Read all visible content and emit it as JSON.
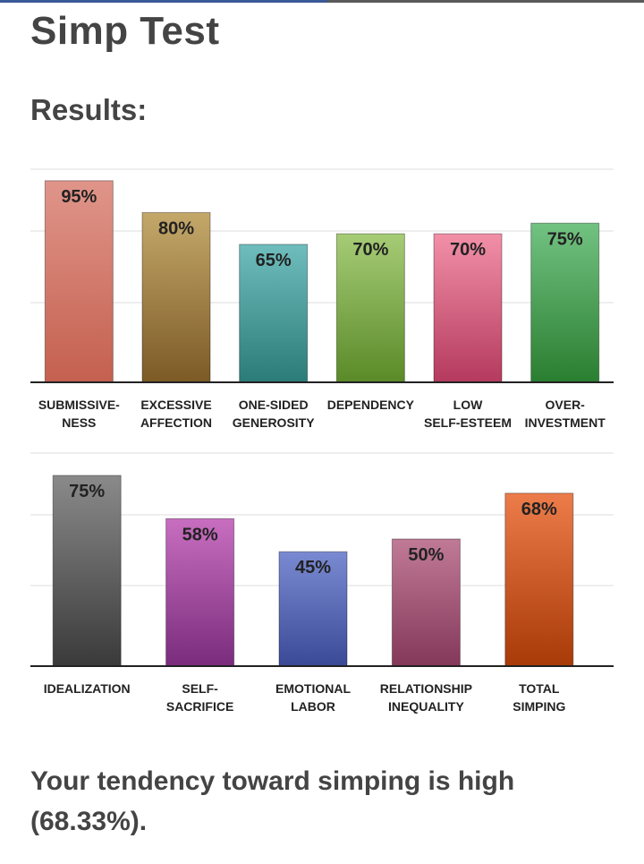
{
  "page": {
    "title": "Simp Test",
    "subtitle": "Results:",
    "result_line1": "Your tendency toward simping is high",
    "result_line2": "(68.33%)."
  },
  "chart_data": [
    {
      "type": "bar",
      "ylim": [
        0,
        100
      ],
      "grid": true,
      "categories": [
        [
          "SUBMISSIVE-",
          "NESS"
        ],
        [
          "EXCESSIVE",
          "AFFECTION"
        ],
        [
          "ONE-SIDED",
          "GENEROSITY"
        ],
        [
          "DEPENDENCY"
        ],
        [
          "LOW",
          "SELF-ESTEEM"
        ],
        [
          "OVER-",
          "INVESTMENT"
        ]
      ],
      "values": [
        95,
        80,
        65,
        70,
        70,
        75
      ],
      "labels": [
        "95%",
        "80%",
        "65%",
        "70%",
        "70%",
        "75%"
      ],
      "colors": [
        [
          "#e0958a",
          "#c4604f"
        ],
        [
          "#c4a86a",
          "#7c5a26"
        ],
        [
          "#6fbdbd",
          "#2b7c78"
        ],
        [
          "#a6cc76",
          "#5a8a28"
        ],
        [
          "#f290a8",
          "#b43a5e"
        ],
        [
          "#72c282",
          "#2a7e30"
        ]
      ]
    },
    {
      "type": "bar",
      "ylim": [
        0,
        100
      ],
      "grid": true,
      "categories": [
        [
          "IDEALIZATION"
        ],
        [
          "SELF-",
          "SACRIFICE"
        ],
        [
          "EMOTIONAL",
          "LABOR"
        ],
        [
          "RELATIONSHIP",
          "INEQUALITY"
        ],
        [
          "TOTAL",
          "SIMPING"
        ]
      ],
      "values": [
        75,
        58,
        45,
        50,
        68
      ],
      "labels": [
        "75%",
        "58%",
        "45%",
        "50%",
        "68%"
      ],
      "colors": [
        [
          "#8a8a8a",
          "#3a3a3a"
        ],
        [
          "#c86ec0",
          "#7a2c7c"
        ],
        [
          "#7a8ad2",
          "#3a4a96"
        ],
        [
          "#c07a96",
          "#84385a"
        ],
        [
          "#ec7c4a",
          "#a83a08"
        ]
      ]
    }
  ]
}
